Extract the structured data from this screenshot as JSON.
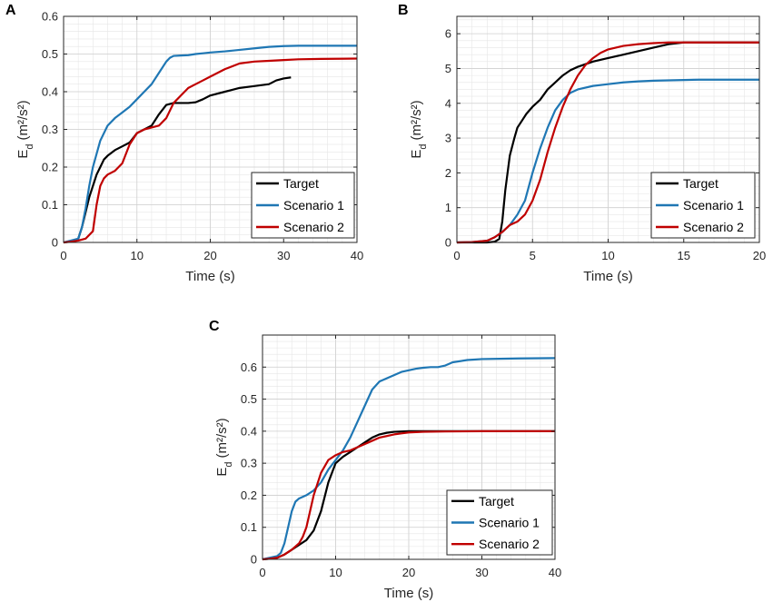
{
  "figure": {
    "colors": {
      "target": "#000000",
      "scenario1": "#1f77b4",
      "scenario2": "#c00000"
    }
  },
  "chart_data": [
    {
      "panel": "A",
      "type": "line",
      "xlabel": "Time (s)",
      "ylabel_main": "E",
      "ylabel_sub": "d",
      "ylabel_unit": "(m²/s²)",
      "xlim": [
        0,
        40
      ],
      "ylim": [
        0,
        0.6
      ],
      "xticks": [
        0,
        10,
        20,
        30,
        40
      ],
      "yticks": [
        0,
        0.1,
        0.2,
        0.3,
        0.4,
        0.5,
        0.6
      ],
      "ytick_labels": [
        "0",
        "0.1",
        "0.2",
        "0.3",
        "0.4",
        "0.5",
        "0.6"
      ],
      "grid": true,
      "legend_position": "bottom-right",
      "series": [
        {
          "name": "Target",
          "color": "#000000",
          "x": [
            0,
            1,
            2,
            2.5,
            3,
            3.5,
            4,
            4.5,
            5,
            5.5,
            6,
            7,
            8,
            9,
            10,
            11,
            12,
            13,
            14,
            15,
            16,
            17,
            18,
            19,
            20,
            22,
            24,
            26,
            28,
            29,
            30,
            31
          ],
          "y": [
            0,
            0.003,
            0.01,
            0.04,
            0.08,
            0.12,
            0.15,
            0.18,
            0.2,
            0.22,
            0.23,
            0.245,
            0.255,
            0.265,
            0.29,
            0.3,
            0.31,
            0.34,
            0.365,
            0.37,
            0.37,
            0.37,
            0.372,
            0.38,
            0.39,
            0.4,
            0.41,
            0.415,
            0.42,
            0.43,
            0.435,
            0.438
          ]
        },
        {
          "name": "Scenario 1",
          "color": "#1f77b4",
          "x": [
            0,
            1,
            2,
            2.5,
            3,
            3.5,
            4,
            5,
            6,
            7,
            8,
            9,
            10,
            11,
            12,
            13,
            14,
            14.5,
            15,
            16,
            17,
            18,
            19,
            20,
            22,
            24,
            26,
            28,
            30,
            32,
            34,
            36,
            38,
            40
          ],
          "y": [
            0,
            0.005,
            0.01,
            0.04,
            0.09,
            0.15,
            0.2,
            0.27,
            0.31,
            0.33,
            0.345,
            0.36,
            0.38,
            0.4,
            0.42,
            0.45,
            0.48,
            0.49,
            0.495,
            0.496,
            0.497,
            0.5,
            0.502,
            0.504,
            0.507,
            0.511,
            0.515,
            0.519,
            0.521,
            0.522,
            0.522,
            0.522,
            0.522,
            0.522
          ]
        },
        {
          "name": "Scenario 2",
          "color": "#c00000",
          "x": [
            0,
            1,
            2,
            3,
            4,
            4.5,
            5,
            5.5,
            6,
            7,
            8,
            9,
            10,
            11,
            12,
            13,
            14,
            15,
            16,
            17,
            18,
            19,
            20,
            22,
            24,
            26,
            28,
            30,
            32,
            35,
            40
          ],
          "y": [
            0,
            0.002,
            0.005,
            0.01,
            0.03,
            0.1,
            0.15,
            0.17,
            0.18,
            0.19,
            0.21,
            0.26,
            0.29,
            0.3,
            0.305,
            0.31,
            0.33,
            0.37,
            0.39,
            0.41,
            0.42,
            0.43,
            0.44,
            0.46,
            0.475,
            0.48,
            0.482,
            0.484,
            0.486,
            0.487,
            0.488
          ]
        }
      ]
    },
    {
      "panel": "B",
      "type": "line",
      "xlabel": "Time (s)",
      "ylabel_main": "E",
      "ylabel_sub": "d",
      "ylabel_unit": "(m²/s²)",
      "xlim": [
        0,
        20
      ],
      "ylim": [
        0,
        6.5
      ],
      "xticks": [
        0,
        5,
        10,
        15,
        20
      ],
      "yticks": [
        0,
        1,
        2,
        3,
        4,
        5,
        6
      ],
      "ytick_labels": [
        "0",
        "1",
        "2",
        "3",
        "4",
        "5",
        "6"
      ],
      "grid": true,
      "legend_position": "bottom-right",
      "series": [
        {
          "name": "Target",
          "color": "#000000",
          "x": [
            0,
            2,
            2.5,
            2.8,
            3,
            3.2,
            3.5,
            3.8,
            4,
            4.3,
            4.6,
            5,
            5.5,
            6,
            6.5,
            7,
            7.5,
            8,
            9,
            10,
            11,
            12,
            13,
            14,
            15,
            16,
            17,
            18,
            19,
            20
          ],
          "y": [
            0,
            0,
            0.02,
            0.1,
            0.6,
            1.5,
            2.5,
            3.0,
            3.3,
            3.5,
            3.7,
            3.9,
            4.1,
            4.4,
            4.6,
            4.8,
            4.95,
            5.05,
            5.2,
            5.3,
            5.4,
            5.5,
            5.6,
            5.7,
            5.75,
            5.75,
            5.75,
            5.75,
            5.75,
            5.75
          ]
        },
        {
          "name": "Scenario 1",
          "color": "#1f77b4",
          "x": [
            0,
            1,
            2,
            2.5,
            3,
            3.5,
            4,
            4.5,
            5,
            5.5,
            6,
            6.5,
            7,
            7.5,
            8,
            9,
            10,
            11,
            12,
            13,
            14,
            15,
            16,
            17,
            18,
            19,
            20
          ],
          "y": [
            0,
            0.01,
            0.05,
            0.15,
            0.3,
            0.5,
            0.8,
            1.2,
            2.0,
            2.7,
            3.3,
            3.8,
            4.1,
            4.3,
            4.4,
            4.5,
            4.55,
            4.6,
            4.63,
            4.65,
            4.66,
            4.67,
            4.68,
            4.68,
            4.68,
            4.68,
            4.68
          ]
        },
        {
          "name": "Scenario 2",
          "color": "#c00000",
          "x": [
            0,
            1,
            2,
            2.5,
            3,
            3.5,
            4,
            4.5,
            5,
            5.5,
            6,
            6.5,
            7,
            7.5,
            8,
            8.5,
            9,
            9.5,
            10,
            11,
            12,
            13,
            14,
            15,
            16,
            17,
            18,
            19,
            20
          ],
          "y": [
            0,
            0.01,
            0.05,
            0.15,
            0.3,
            0.5,
            0.6,
            0.8,
            1.2,
            1.8,
            2.6,
            3.3,
            3.9,
            4.4,
            4.8,
            5.1,
            5.3,
            5.45,
            5.55,
            5.65,
            5.7,
            5.73,
            5.75,
            5.75,
            5.75,
            5.75,
            5.75,
            5.75,
            5.75
          ]
        }
      ]
    },
    {
      "panel": "C",
      "type": "line",
      "xlabel": "Time (s)",
      "ylabel_main": "E",
      "ylabel_sub": "d",
      "ylabel_unit": "(m²/s²)",
      "xlim": [
        0,
        40
      ],
      "ylim": [
        0,
        0.7
      ],
      "xticks": [
        0,
        10,
        20,
        30,
        40
      ],
      "yticks": [
        0,
        0.1,
        0.2,
        0.3,
        0.4,
        0.5,
        0.6
      ],
      "ytick_labels": [
        "0",
        "0.1",
        "0.2",
        "0.3",
        "0.4",
        "0.5",
        "0.6"
      ],
      "grid": true,
      "legend_position": "bottom-right",
      "series": [
        {
          "name": "Target",
          "color": "#000000",
          "x": [
            0,
            1,
            2,
            3,
            4,
            5,
            6,
            7,
            8,
            9,
            10,
            11,
            12,
            13,
            14,
            15,
            16,
            17,
            18,
            19,
            20,
            22,
            25,
            30,
            35,
            40
          ],
          "y": [
            0,
            0.002,
            0.005,
            0.015,
            0.03,
            0.045,
            0.06,
            0.09,
            0.15,
            0.24,
            0.3,
            0.32,
            0.335,
            0.35,
            0.365,
            0.38,
            0.39,
            0.395,
            0.398,
            0.399,
            0.4,
            0.4,
            0.4,
            0.4,
            0.4,
            0.4
          ]
        },
        {
          "name": "Scenario 1",
          "color": "#1f77b4",
          "x": [
            0,
            1,
            2,
            2.5,
            3,
            3.5,
            4,
            4.5,
            5,
            6,
            7,
            8,
            9,
            10,
            11,
            12,
            13,
            14,
            15,
            16,
            17,
            18,
            19,
            20,
            21,
            22,
            23,
            24,
            25,
            26,
            28,
            30,
            35,
            40
          ],
          "y": [
            0,
            0.005,
            0.01,
            0.02,
            0.05,
            0.1,
            0.15,
            0.18,
            0.19,
            0.2,
            0.215,
            0.24,
            0.28,
            0.31,
            0.34,
            0.38,
            0.43,
            0.48,
            0.53,
            0.555,
            0.565,
            0.575,
            0.585,
            0.59,
            0.595,
            0.598,
            0.6,
            0.6,
            0.605,
            0.615,
            0.622,
            0.625,
            0.627,
            0.628
          ]
        },
        {
          "name": "Scenario 2",
          "color": "#c00000",
          "x": [
            0,
            1,
            2,
            3,
            4,
            5,
            5.5,
            6,
            6.5,
            7,
            8,
            9,
            10,
            11,
            12,
            13,
            14,
            15,
            16,
            17,
            18,
            19,
            20,
            22,
            25,
            30,
            35,
            40
          ],
          "y": [
            0,
            0.002,
            0.005,
            0.015,
            0.03,
            0.05,
            0.07,
            0.1,
            0.15,
            0.2,
            0.27,
            0.31,
            0.325,
            0.335,
            0.34,
            0.35,
            0.36,
            0.37,
            0.38,
            0.385,
            0.39,
            0.393,
            0.396,
            0.398,
            0.399,
            0.4,
            0.4,
            0.4
          ]
        }
      ]
    }
  ]
}
